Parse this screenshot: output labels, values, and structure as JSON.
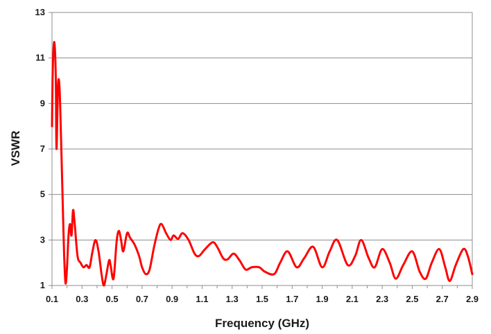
{
  "chart_data": {
    "type": "line",
    "title": "",
    "xlabel": "Frequency (GHz)",
    "ylabel": "VSWR",
    "xlim": [
      0.1,
      2.9
    ],
    "ylim": [
      1,
      13
    ],
    "x_ticks": [
      "0.1",
      "0.3",
      "0.5",
      "0.7",
      "0.9",
      "1.1",
      "1.3",
      "1.5",
      "1.7",
      "1.9",
      "2.1",
      "2.3",
      "2.5",
      "2.7",
      "2.9"
    ],
    "y_ticks": [
      "1",
      "3",
      "5",
      "7",
      "9",
      "11",
      "13"
    ],
    "grid": "horizontal",
    "legend": "none",
    "series": [
      {
        "color": "#ff0000",
        "points": [
          [
            0.1,
            8.0
          ],
          [
            0.105,
            10.5
          ],
          [
            0.115,
            11.7
          ],
          [
            0.125,
            10.2
          ],
          [
            0.13,
            7.0
          ],
          [
            0.14,
            9.8
          ],
          [
            0.15,
            9.7
          ],
          [
            0.16,
            7.5
          ],
          [
            0.17,
            5.0
          ],
          [
            0.18,
            2.5
          ],
          [
            0.19,
            1.1
          ],
          [
            0.2,
            1.8
          ],
          [
            0.21,
            3.2
          ],
          [
            0.22,
            3.7
          ],
          [
            0.23,
            3.2
          ],
          [
            0.24,
            4.3
          ],
          [
            0.25,
            3.8
          ],
          [
            0.27,
            2.3
          ],
          [
            0.29,
            2.0
          ],
          [
            0.31,
            1.8
          ],
          [
            0.33,
            1.9
          ],
          [
            0.35,
            1.8
          ],
          [
            0.37,
            2.5
          ],
          [
            0.39,
            3.0
          ],
          [
            0.41,
            2.5
          ],
          [
            0.43,
            1.5
          ],
          [
            0.445,
            1.0
          ],
          [
            0.46,
            1.4
          ],
          [
            0.48,
            2.1
          ],
          [
            0.49,
            1.9
          ],
          [
            0.51,
            1.3
          ],
          [
            0.53,
            2.9
          ],
          [
            0.545,
            3.4
          ],
          [
            0.56,
            3.0
          ],
          [
            0.575,
            2.5
          ],
          [
            0.6,
            3.3
          ],
          [
            0.62,
            3.1
          ],
          [
            0.65,
            2.8
          ],
          [
            0.68,
            2.3
          ],
          [
            0.7,
            1.8
          ],
          [
            0.725,
            1.5
          ],
          [
            0.75,
            1.7
          ],
          [
            0.78,
            2.7
          ],
          [
            0.81,
            3.5
          ],
          [
            0.83,
            3.7
          ],
          [
            0.86,
            3.3
          ],
          [
            0.89,
            3.0
          ],
          [
            0.91,
            3.2
          ],
          [
            0.94,
            3.05
          ],
          [
            0.97,
            3.3
          ],
          [
            1.01,
            3.0
          ],
          [
            1.05,
            2.4
          ],
          [
            1.08,
            2.3
          ],
          [
            1.12,
            2.6
          ],
          [
            1.17,
            2.9
          ],
          [
            1.2,
            2.7
          ],
          [
            1.24,
            2.2
          ],
          [
            1.27,
            2.15
          ],
          [
            1.31,
            2.4
          ],
          [
            1.35,
            2.1
          ],
          [
            1.39,
            1.7
          ],
          [
            1.43,
            1.8
          ],
          [
            1.48,
            1.8
          ],
          [
            1.52,
            1.6
          ],
          [
            1.58,
            1.5
          ],
          [
            1.62,
            2.0
          ],
          [
            1.67,
            2.5
          ],
          [
            1.73,
            1.8
          ],
          [
            1.78,
            2.2
          ],
          [
            1.84,
            2.7
          ],
          [
            1.9,
            1.8
          ],
          [
            1.95,
            2.5
          ],
          [
            2.0,
            3.0
          ],
          [
            2.07,
            1.9
          ],
          [
            2.12,
            2.3
          ],
          [
            2.16,
            3.0
          ],
          [
            2.21,
            2.2
          ],
          [
            2.25,
            1.8
          ],
          [
            2.3,
            2.6
          ],
          [
            2.35,
            2.0
          ],
          [
            2.39,
            1.3
          ],
          [
            2.44,
            1.9
          ],
          [
            2.5,
            2.5
          ],
          [
            2.55,
            1.6
          ],
          [
            2.59,
            1.3
          ],
          [
            2.63,
            2.0
          ],
          [
            2.68,
            2.6
          ],
          [
            2.72,
            1.8
          ],
          [
            2.75,
            1.2
          ],
          [
            2.79,
            1.9
          ],
          [
            2.84,
            2.6
          ],
          [
            2.87,
            2.3
          ],
          [
            2.9,
            1.5
          ]
        ]
      }
    ]
  }
}
